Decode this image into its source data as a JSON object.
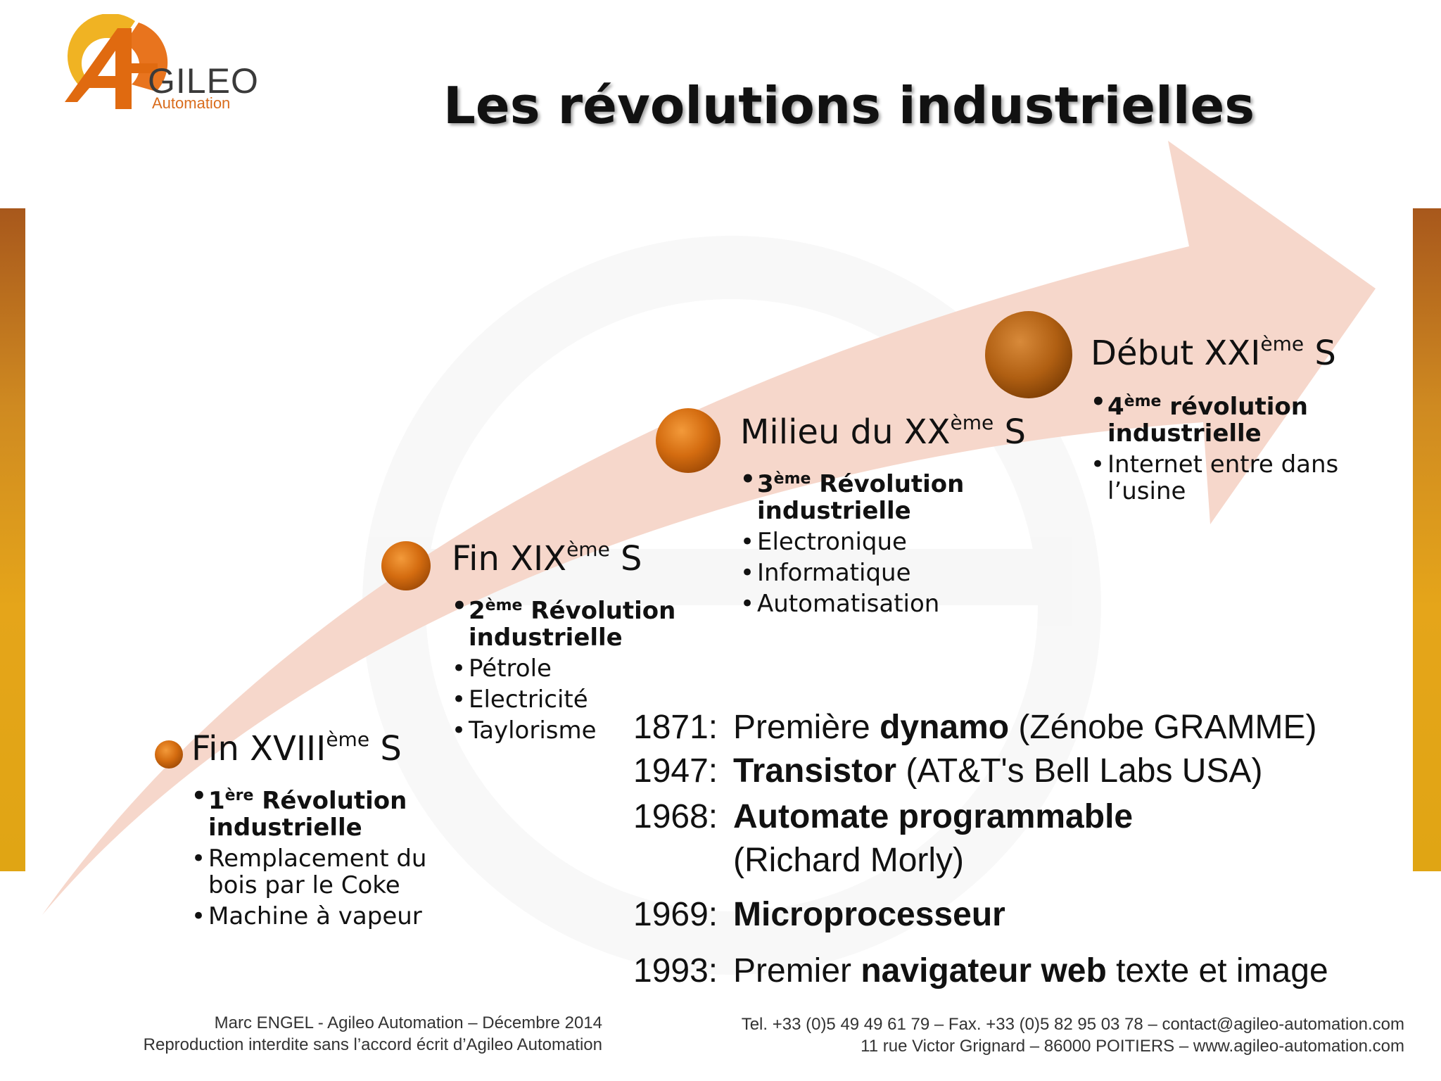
{
  "logo": {
    "name": "GILEO",
    "sub": "Automation"
  },
  "title": "Les révolutions industrielles",
  "eras": [
    {
      "title": "Fin XVIII",
      "sup": "ème",
      "suffix": " S",
      "headline": {
        "num": "1",
        "sup": "ère",
        "text": " Révolution industrielle"
      },
      "bullets": [
        "Remplacement du bois par le Coke",
        "Machine à vapeur"
      ]
    },
    {
      "title": "Fin XIX",
      "sup": "ème",
      "suffix": " S",
      "headline": {
        "num": "2",
        "sup": "ème",
        "text": " Révolution industrielle"
      },
      "bullets": [
        "Pétrole",
        "Electricité",
        "Taylorisme"
      ]
    },
    {
      "title": "Milieu du XX",
      "sup": "ème",
      "suffix": " S",
      "headline": {
        "num": "3",
        "sup": "ème",
        "text": " Révolution industrielle"
      },
      "bullets": [
        "Electronique",
        "Informatique",
        "Automatisation"
      ]
    },
    {
      "title": "Début XXI",
      "sup": "ème",
      "suffix": " S",
      "headline": {
        "num": "4",
        "sup": "ème",
        "text": " révolution industrielle"
      },
      "bullets": [
        "Internet entre dans l’usine"
      ]
    }
  ],
  "events": [
    {
      "year": "1871:",
      "pre": "Première ",
      "bold": "dynamo",
      "post": " (Zénobe GRAMME)"
    },
    {
      "year": "1947:",
      "pre": "",
      "bold": "Transistor",
      "post": " (AT&T's Bell Labs USA)"
    },
    {
      "year": "1968:",
      "pre": "",
      "bold": "Automate programmable",
      "post": " (Richard Morly)"
    },
    {
      "year": "1969:",
      "pre": "",
      "bold": "Microprocesseur",
      "post": ""
    },
    {
      "year": "1993:",
      "pre": "Premier ",
      "bold": "navigateur web",
      "post": " texte et image"
    }
  ],
  "footer": {
    "left_line1": "Marc ENGEL - Agileo Automation – Décembre 2014",
    "left_line2": "Reproduction interdite sans l’accord écrit d’Agileo Automation",
    "right_line1": "Tel. +33 (0)5 49 49 61 79 – Fax. +33 (0)5 82 95 03 78 – contact@agileo-automation.com",
    "right_line2": "11 rue Victor Grignard – 86000 POITIERS – www.agileo-automation.com"
  },
  "colors": {
    "arrow": "#f5d5c8",
    "dot": "#d06f12",
    "brand_orange": "#e8741e",
    "brand_yellow": "#f0b323"
  }
}
